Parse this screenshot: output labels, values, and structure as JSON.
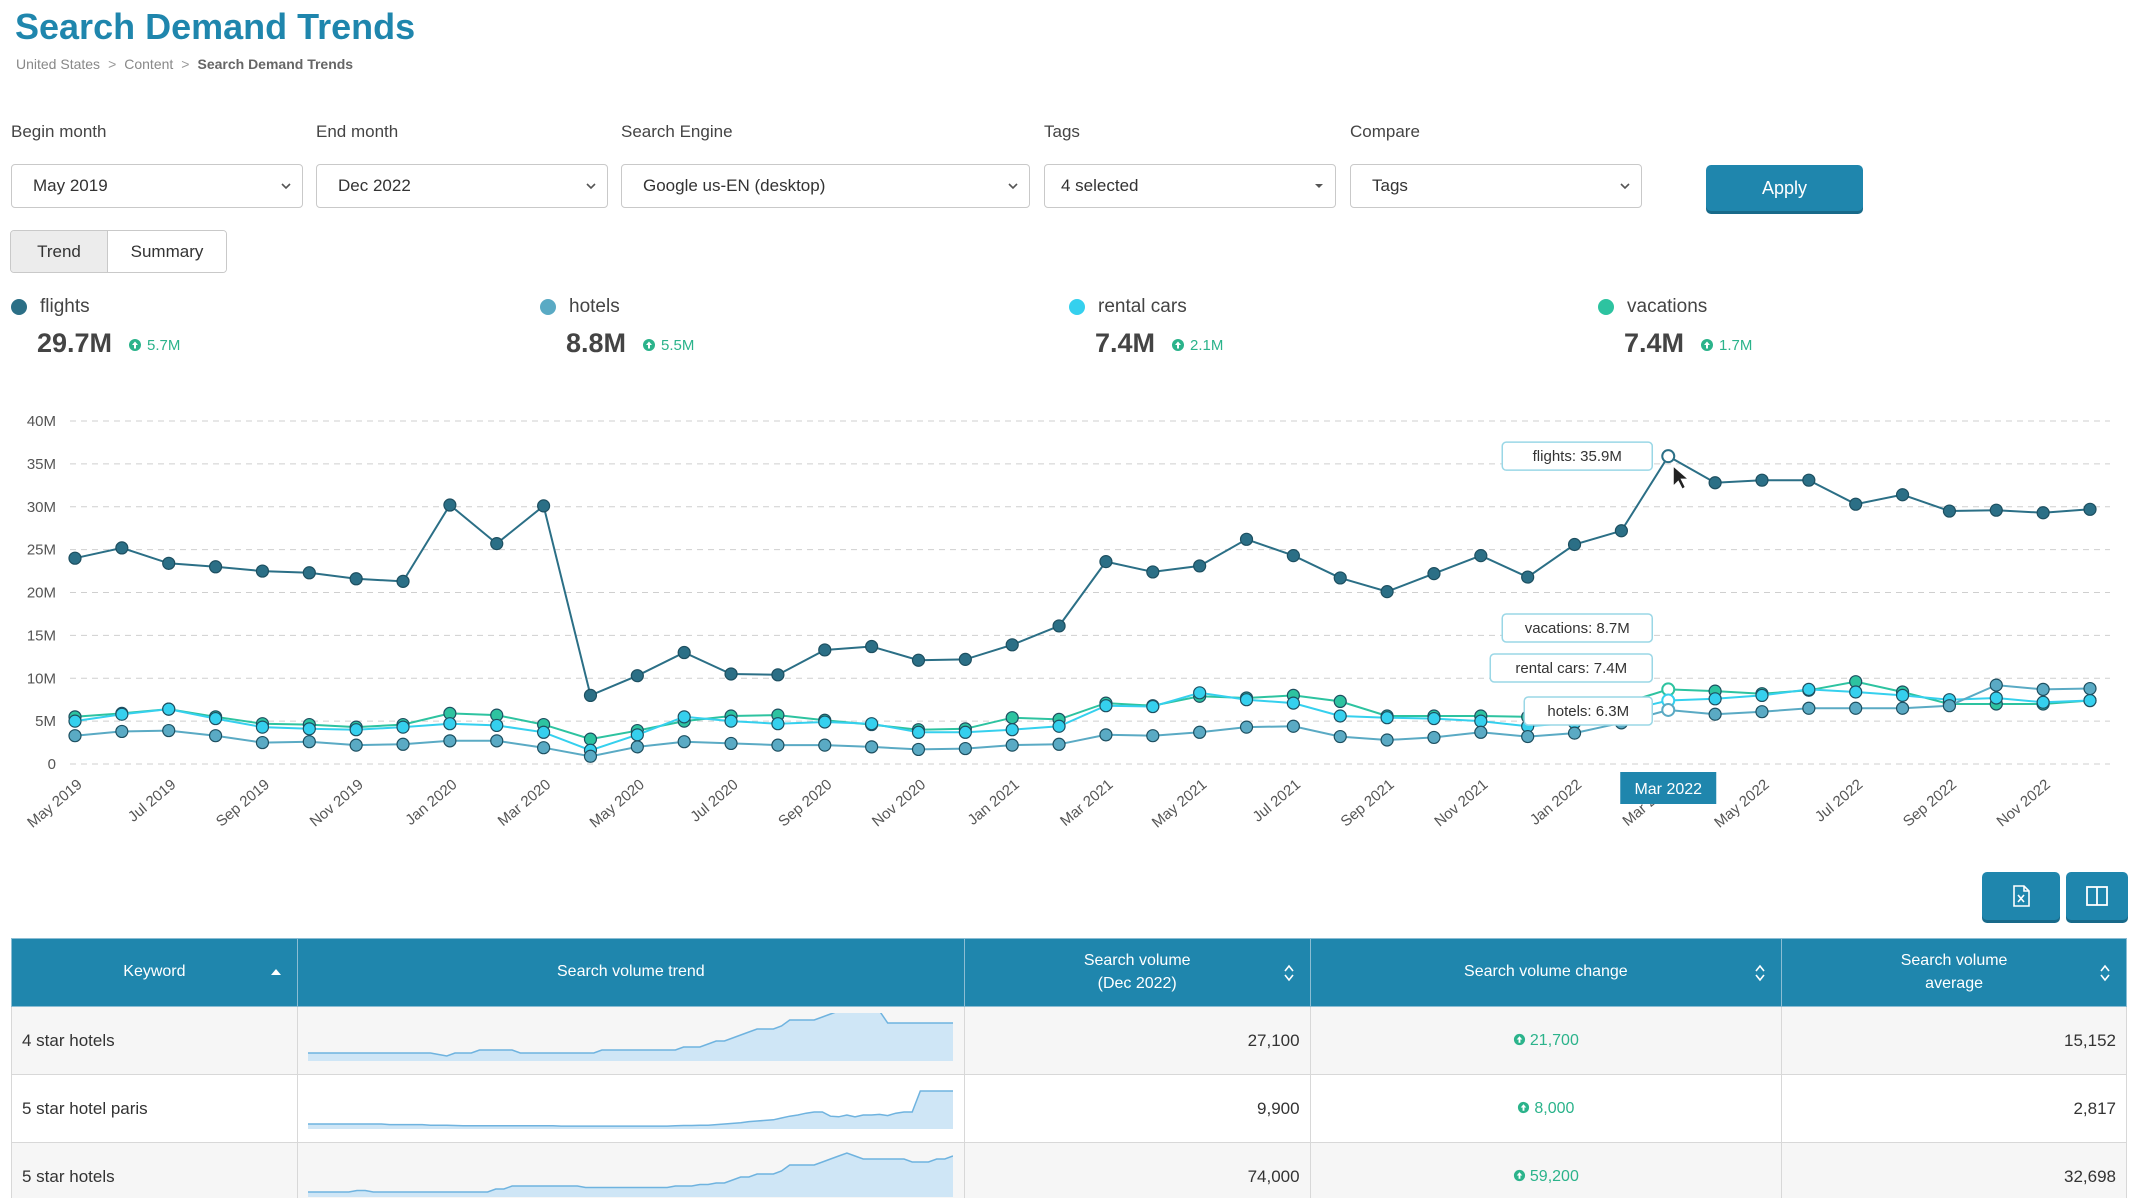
{
  "header": {
    "title": "Search Demand Trends",
    "breadcrumb": [
      "United States",
      "Content",
      "Search Demand Trends"
    ]
  },
  "filters": {
    "begin_month": {
      "label": "Begin month",
      "value": "May 2019"
    },
    "end_month": {
      "label": "End month",
      "value": "Dec 2022"
    },
    "search_engine": {
      "label": "Search Engine",
      "value": "Google us-EN (desktop)"
    },
    "tags": {
      "label": "Tags",
      "value": "4 selected"
    },
    "compare": {
      "label": "Compare",
      "value": "Tags"
    },
    "apply_label": "Apply"
  },
  "view_toggle": {
    "trend": "Trend",
    "summary": "Summary",
    "active": "Trend"
  },
  "kpis": [
    {
      "name": "flights",
      "value": "29.7M",
      "change": "5.7M",
      "color": "#2b6f86"
    },
    {
      "name": "hotels",
      "value": "8.8M",
      "change": "5.5M",
      "color": "#5aaac4"
    },
    {
      "name": "rental cars",
      "value": "7.4M",
      "change": "2.1M",
      "color": "#35d0ee"
    },
    {
      "name": "vacations",
      "value": "7.4M",
      "change": "1.7M",
      "color": "#2dc3a0"
    }
  ],
  "chart_data": {
    "type": "line",
    "y_ticks": [
      "0",
      "5M",
      "10M",
      "15M",
      "20M",
      "25M",
      "30M",
      "35M",
      "40M"
    ],
    "ylim": [
      0,
      40
    ],
    "x_tick_labels": [
      "May 2019",
      "Jul 2019",
      "Sep 2019",
      "Nov 2019",
      "Jan 2020",
      "Mar 2020",
      "May 2020",
      "Jul 2020",
      "Sep 2020",
      "Nov 2020",
      "Jan 2021",
      "Mar 2021",
      "May 2021",
      "Jul 2021",
      "Sep 2021",
      "Nov 2021",
      "Jan 2022",
      "Mar 2022",
      "May 2022",
      "Jul 2022",
      "Sep 2022",
      "Nov 2022"
    ],
    "months": [
      "May 2019",
      "Jun 2019",
      "Jul 2019",
      "Aug 2019",
      "Sep 2019",
      "Oct 2019",
      "Nov 2019",
      "Dec 2019",
      "Jan 2020",
      "Feb 2020",
      "Mar 2020",
      "Apr 2020",
      "May 2020",
      "Jun 2020",
      "Jul 2020",
      "Aug 2020",
      "Sep 2020",
      "Oct 2020",
      "Nov 2020",
      "Dec 2020",
      "Jan 2021",
      "Feb 2021",
      "Mar 2021",
      "Apr 2021",
      "May 2021",
      "Jun 2021",
      "Jul 2021",
      "Aug 2021",
      "Sep 2021",
      "Oct 2021",
      "Nov 2021",
      "Dec 2021",
      "Jan 2022",
      "Feb 2022",
      "Mar 2022",
      "Apr 2022",
      "May 2022",
      "Jun 2022",
      "Jul 2022",
      "Aug 2022",
      "Sep 2022",
      "Oct 2022",
      "Nov 2022",
      "Dec 2022"
    ],
    "series": [
      {
        "name": "flights",
        "color": "#2b6f86",
        "values": [
          24.0,
          25.2,
          23.4,
          23.0,
          22.5,
          22.3,
          21.6,
          21.3,
          30.2,
          25.7,
          30.1,
          8.0,
          10.3,
          13.0,
          10.5,
          10.4,
          13.3,
          13.7,
          12.1,
          12.2,
          13.9,
          16.1,
          23.6,
          22.4,
          23.1,
          26.2,
          24.3,
          21.7,
          20.1,
          22.2,
          24.3,
          21.8,
          25.6,
          27.2,
          35.9,
          32.8,
          33.1,
          33.1,
          30.3,
          31.4,
          29.5,
          29.6,
          29.3,
          29.7
        ]
      },
      {
        "name": "hotels",
        "color": "#5aaac4",
        "values": [
          3.3,
          3.8,
          3.9,
          3.3,
          2.5,
          2.6,
          2.2,
          2.3,
          2.7,
          2.7,
          1.9,
          0.9,
          2.0,
          2.6,
          2.4,
          2.2,
          2.2,
          2.0,
          1.7,
          1.8,
          2.2,
          2.3,
          3.4,
          3.3,
          3.7,
          4.3,
          4.4,
          3.2,
          2.8,
          3.1,
          3.7,
          3.2,
          3.6,
          4.8,
          6.3,
          5.8,
          6.1,
          6.5,
          6.5,
          6.5,
          6.8,
          9.2,
          8.7,
          8.8
        ]
      },
      {
        "name": "rental cars",
        "color": "#35d0ee",
        "values": [
          5.0,
          5.8,
          6.4,
          5.3,
          4.3,
          4.1,
          4.0,
          4.3,
          4.7,
          4.5,
          3.7,
          1.6,
          3.4,
          5.5,
          5.0,
          4.7,
          4.9,
          4.7,
          3.7,
          3.7,
          4.0,
          4.4,
          6.8,
          6.7,
          8.3,
          7.5,
          7.1,
          5.6,
          5.4,
          5.3,
          5.0,
          4.4,
          4.8,
          6.1,
          7.4,
          7.6,
          8.0,
          8.7,
          8.4,
          8.0,
          7.5,
          7.7,
          7.2,
          7.4
        ]
      },
      {
        "name": "vacations",
        "color": "#2dc3a0",
        "values": [
          5.5,
          5.9,
          6.4,
          5.5,
          4.7,
          4.6,
          4.3,
          4.6,
          5.9,
          5.7,
          4.6,
          2.9,
          3.9,
          5.0,
          5.6,
          5.7,
          5.1,
          4.6,
          4.0,
          4.1,
          5.4,
          5.2,
          7.1,
          6.8,
          7.9,
          7.7,
          8.0,
          7.3,
          5.6,
          5.6,
          5.6,
          5.5,
          5.9,
          7.0,
          8.7,
          8.5,
          8.2,
          8.6,
          9.6,
          8.4,
          7.0,
          7.0,
          7.0,
          7.4
        ]
      }
    ],
    "hover": {
      "month": "Mar 2022",
      "labels": [
        "flights: 35.9M",
        "vacations: 8.7M",
        "rental cars: 7.4M",
        "hotels: 6.3M"
      ]
    }
  },
  "table": {
    "headers": [
      "Keyword",
      "Search volume trend",
      "Search volume\n(Dec 2022)",
      "Search volume change",
      "Search volume\naverage"
    ],
    "rows": [
      {
        "keyword": "4 star hotels",
        "volume": "27,100",
        "change": "21,700",
        "average": "15,152",
        "trend": [
          2,
          2,
          2,
          2,
          2,
          2,
          2,
          2,
          2,
          2,
          2,
          2,
          2,
          2,
          2,
          2,
          1.5,
          1,
          2,
          2,
          2,
          3,
          3,
          3,
          3,
          3,
          2,
          2,
          2,
          2,
          2,
          2,
          2,
          2,
          2,
          2,
          3,
          3,
          3,
          3,
          3,
          3,
          3,
          3,
          3,
          3,
          4,
          4,
          4,
          5,
          6,
          6,
          7,
          8,
          9,
          10,
          10,
          10,
          11,
          13,
          13,
          13,
          13,
          14,
          15,
          16,
          17,
          19,
          18,
          17,
          16,
          12,
          12,
          12,
          12,
          12,
          12,
          12,
          12,
          12
        ]
      },
      {
        "keyword": "5 star hotel paris",
        "volume": "9,900",
        "change": "8,000",
        "average": "2,817",
        "trend": [
          1,
          1,
          1,
          1,
          1,
          1,
          1,
          1,
          1,
          1,
          0.8,
          0.8,
          0.8,
          0.8,
          0.8,
          0.6,
          0.6,
          0.6,
          0.5,
          0.4,
          0.4,
          0.4,
          0.4,
          0.4,
          0.4,
          0.4,
          0.4,
          0.4,
          0.4,
          0.4,
          0.4,
          0.3,
          0.3,
          0.3,
          0.3,
          0.3,
          0.3,
          0.3,
          0.3,
          0.3,
          0.3,
          0.3,
          0.3,
          0.3,
          0.3,
          0.4,
          0.5,
          0.5,
          0.6,
          0.6,
          0.8,
          1,
          1.2,
          1.4,
          1.8,
          2,
          2.2,
          2.4,
          3,
          3.6,
          4,
          4.6,
          5,
          5,
          3.6,
          3.4,
          4,
          3.4,
          4,
          4,
          4.2,
          3.8,
          4.6,
          5,
          5,
          12,
          12,
          12,
          12,
          12
        ]
      },
      {
        "keyword": "5 star hotels",
        "volume": "74,000",
        "change": "59,200",
        "average": "32,698",
        "trend": [
          1,
          1,
          1,
          1,
          1,
          1,
          1.5,
          1.5,
          1,
          1,
          1,
          1,
          1,
          1,
          1,
          1,
          1,
          1,
          1,
          1,
          1,
          1,
          1,
          2,
          2,
          3,
          3,
          3,
          3,
          3,
          3,
          3,
          3,
          3,
          2.5,
          2.5,
          2.5,
          2.5,
          2.5,
          2.5,
          2.5,
          2.5,
          2.5,
          2.5,
          2.5,
          3,
          3,
          3,
          3.5,
          3.5,
          4,
          4,
          5,
          6,
          6,
          7,
          7,
          7,
          8,
          10,
          10,
          10,
          10,
          11,
          12,
          13,
          14,
          13,
          12,
          12,
          12,
          12,
          12,
          12,
          11,
          11,
          11,
          12,
          12,
          13
        ]
      }
    ]
  }
}
